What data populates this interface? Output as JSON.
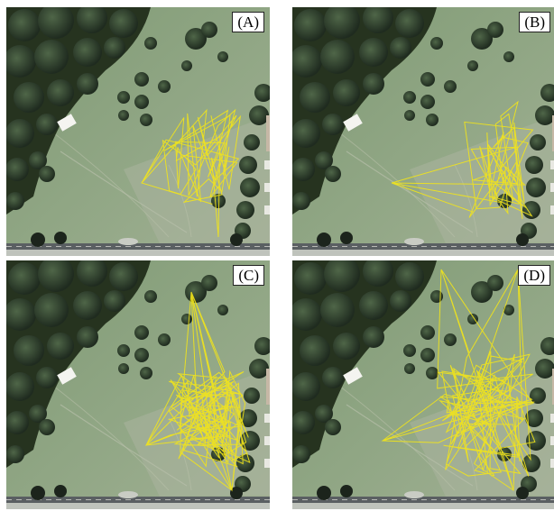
{
  "figure": {
    "panels": [
      {
        "id": "a",
        "label": "(A)"
      },
      {
        "id": "b",
        "label": "(B)"
      },
      {
        "id": "c",
        "label": "(C)"
      },
      {
        "id": "d",
        "label": "(D)"
      }
    ],
    "track_color": "#f2e41a",
    "colors": {
      "grass": "#8fa482",
      "trees": "#2c3a2b",
      "road": "#5a5f62"
    }
  }
}
